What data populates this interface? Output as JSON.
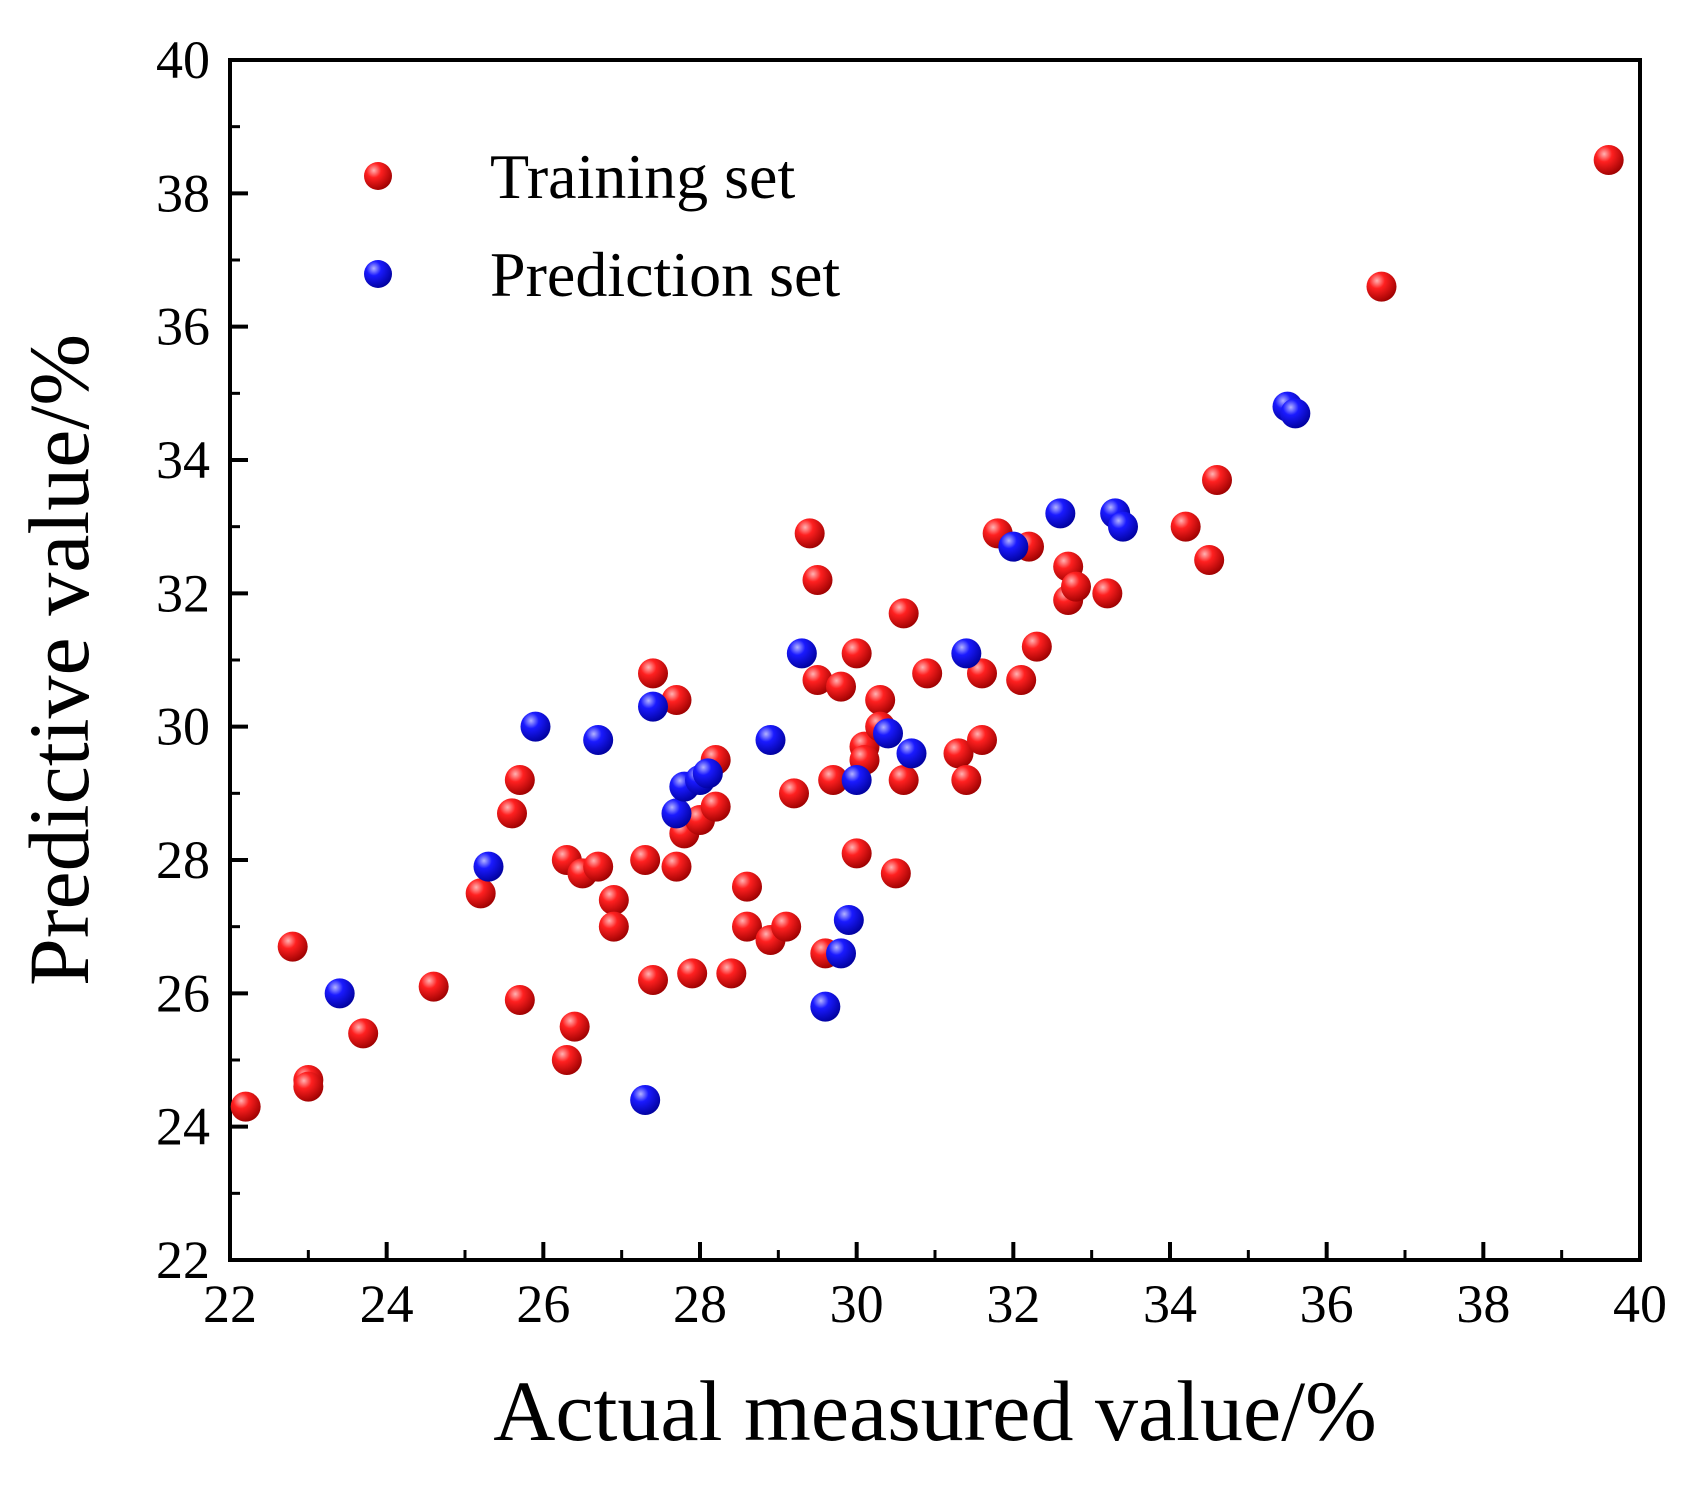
{
  "chart_data": {
    "type": "scatter",
    "xlabel": "Actual measured value/%",
    "ylabel": "Predictive value/%",
    "xlim": [
      22,
      40
    ],
    "ylim": [
      22,
      40
    ],
    "xticks": [
      22,
      24,
      26,
      28,
      30,
      32,
      34,
      36,
      38,
      40
    ],
    "yticks": [
      22,
      24,
      26,
      28,
      30,
      32,
      34,
      36,
      38,
      40
    ],
    "xtick_labels": [
      "22",
      "24",
      "26",
      "28",
      "30",
      "32",
      "34",
      "36",
      "38",
      "40"
    ],
    "ytick_labels": [
      "22",
      "24",
      "26",
      "28",
      "30",
      "32",
      "34",
      "36",
      "38",
      "40"
    ],
    "legend_position": "top-left",
    "series": [
      {
        "name": "Training set",
        "color": "#e60000",
        "points": [
          [
            22.2,
            24.3
          ],
          [
            22.8,
            26.7
          ],
          [
            23.0,
            24.7
          ],
          [
            23.0,
            24.6
          ],
          [
            23.7,
            25.4
          ],
          [
            24.6,
            26.1
          ],
          [
            25.2,
            27.5
          ],
          [
            25.6,
            28.7
          ],
          [
            25.7,
            29.2
          ],
          [
            25.7,
            25.9
          ],
          [
            26.3,
            28.0
          ],
          [
            26.3,
            25.0
          ],
          [
            26.4,
            25.5
          ],
          [
            26.5,
            27.8
          ],
          [
            26.7,
            27.9
          ],
          [
            26.9,
            27.4
          ],
          [
            26.9,
            27.0
          ],
          [
            27.3,
            28.0
          ],
          [
            27.4,
            30.8
          ],
          [
            27.4,
            26.2
          ],
          [
            27.7,
            27.9
          ],
          [
            27.7,
            30.4
          ],
          [
            27.8,
            28.4
          ],
          [
            27.9,
            26.3
          ],
          [
            28.0,
            28.6
          ],
          [
            28.2,
            28.8
          ],
          [
            28.2,
            29.5
          ],
          [
            28.4,
            26.3
          ],
          [
            28.6,
            27.6
          ],
          [
            28.6,
            27.0
          ],
          [
            28.9,
            26.8
          ],
          [
            29.1,
            27.0
          ],
          [
            29.2,
            29.0
          ],
          [
            29.4,
            32.9
          ],
          [
            29.5,
            32.2
          ],
          [
            29.5,
            30.7
          ],
          [
            29.6,
            26.6
          ],
          [
            29.7,
            29.2
          ],
          [
            29.8,
            30.6
          ],
          [
            30.0,
            31.1
          ],
          [
            30.0,
            28.1
          ],
          [
            30.1,
            29.7
          ],
          [
            30.1,
            29.5
          ],
          [
            30.3,
            30.4
          ],
          [
            30.3,
            30.0
          ],
          [
            30.5,
            27.8
          ],
          [
            30.6,
            31.7
          ],
          [
            30.6,
            29.2
          ],
          [
            30.9,
            30.8
          ],
          [
            31.3,
            29.6
          ],
          [
            31.4,
            29.2
          ],
          [
            31.6,
            30.8
          ],
          [
            31.6,
            29.8
          ],
          [
            31.8,
            32.9
          ],
          [
            32.1,
            30.7
          ],
          [
            32.2,
            32.7
          ],
          [
            32.3,
            31.2
          ],
          [
            32.7,
            32.4
          ],
          [
            32.7,
            31.9
          ],
          [
            32.8,
            32.1
          ],
          [
            33.2,
            32.0
          ],
          [
            34.2,
            33.0
          ],
          [
            34.5,
            32.5
          ],
          [
            34.6,
            33.7
          ],
          [
            36.7,
            36.6
          ],
          [
            39.6,
            38.5
          ]
        ]
      },
      {
        "name": "Prediction set",
        "color": "#0000e6",
        "points": [
          [
            23.4,
            26.0
          ],
          [
            25.3,
            27.9
          ],
          [
            25.9,
            30.0
          ],
          [
            26.7,
            29.8
          ],
          [
            27.3,
            24.4
          ],
          [
            27.4,
            30.3
          ],
          [
            27.7,
            28.7
          ],
          [
            27.8,
            29.1
          ],
          [
            28.0,
            29.2
          ],
          [
            28.1,
            29.3
          ],
          [
            28.9,
            29.8
          ],
          [
            29.3,
            31.1
          ],
          [
            29.6,
            25.8
          ],
          [
            29.8,
            26.6
          ],
          [
            29.9,
            27.1
          ],
          [
            30.0,
            29.2
          ],
          [
            30.4,
            29.9
          ],
          [
            30.7,
            29.6
          ],
          [
            31.4,
            31.1
          ],
          [
            32.0,
            32.7
          ],
          [
            32.6,
            33.2
          ],
          [
            33.3,
            33.2
          ],
          [
            33.4,
            33.0
          ],
          [
            35.5,
            34.8
          ],
          [
            35.6,
            34.7
          ]
        ]
      }
    ]
  }
}
